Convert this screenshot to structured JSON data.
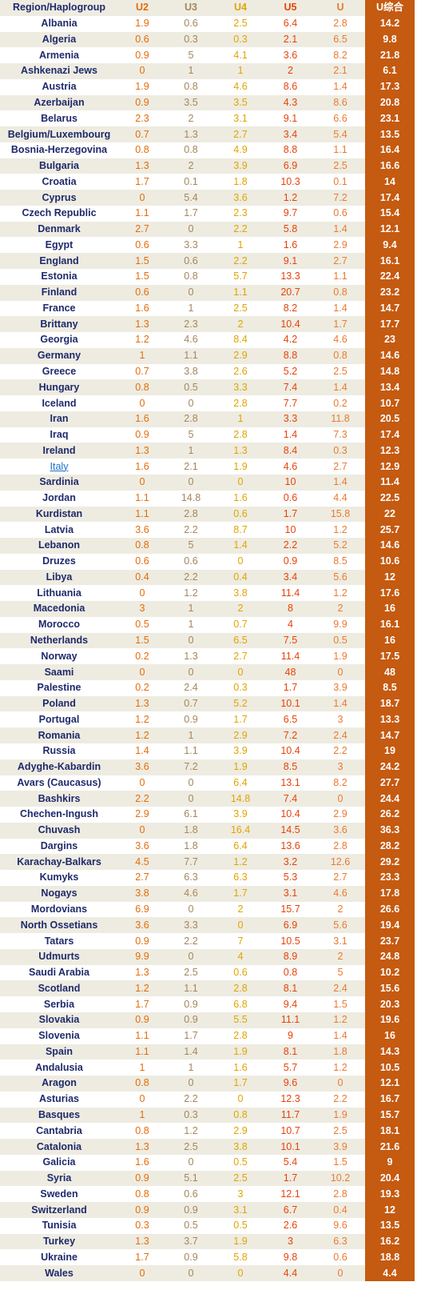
{
  "table": {
    "header": [
      "Region/Haplogroup",
      "U2",
      "U3",
      "U4",
      "U5",
      "U",
      "U综合"
    ],
    "rows": [
      [
        "Albania",
        1.9,
        0.6,
        2.5,
        6.4,
        2.8,
        14.2
      ],
      [
        "Algeria",
        0.6,
        0.3,
        0.3,
        2.1,
        6.5,
        9.8
      ],
      [
        "Armenia",
        0.9,
        5,
        4.1,
        3.6,
        8.2,
        21.8
      ],
      [
        "Ashkenazi Jews",
        0,
        1,
        1,
        2,
        2.1,
        6.1
      ],
      [
        "Austria",
        1.9,
        0.8,
        4.6,
        8.6,
        1.4,
        17.3
      ],
      [
        "Azerbaijan",
        0.9,
        3.5,
        3.5,
        4.3,
        8.6,
        20.8
      ],
      [
        "Belarus",
        2.3,
        2,
        3.1,
        9.1,
        6.6,
        23.1
      ],
      [
        "Belgium/Luxembourg",
        0.7,
        1.3,
        2.7,
        3.4,
        5.4,
        13.5
      ],
      [
        "Bosnia-Herzegovina",
        0.8,
        0.8,
        4.9,
        8.8,
        1.1,
        16.4
      ],
      [
        "Bulgaria",
        1.3,
        2,
        3.9,
        6.9,
        2.5,
        16.6
      ],
      [
        "Croatia",
        1.7,
        0.1,
        1.8,
        10.3,
        0.1,
        14
      ],
      [
        "Cyprus",
        0,
        5.4,
        3.6,
        1.2,
        7.2,
        17.4
      ],
      [
        "Czech Republic",
        1.1,
        1.7,
        2.3,
        9.7,
        0.6,
        15.4
      ],
      [
        "Denmark",
        2.7,
        0,
        2.2,
        5.8,
        1.4,
        12.1
      ],
      [
        "Egypt",
        0.6,
        3.3,
        1,
        1.6,
        2.9,
        9.4
      ],
      [
        "England",
        1.5,
        0.6,
        2.2,
        9.1,
        2.7,
        16.1
      ],
      [
        "Estonia",
        1.5,
        0.8,
        5.7,
        13.3,
        1.1,
        22.4
      ],
      [
        "Finland",
        0.6,
        0,
        1.1,
        20.7,
        0.8,
        23.2
      ],
      [
        "France",
        1.6,
        1,
        2.5,
        8.2,
        1.4,
        14.7
      ],
      [
        "Brittany",
        1.3,
        2.3,
        2,
        10.4,
        1.7,
        17.7
      ],
      [
        "Georgia",
        1.2,
        4.6,
        8.4,
        4.2,
        4.6,
        23
      ],
      [
        "Germany",
        1,
        1.1,
        2.9,
        8.8,
        0.8,
        14.6
      ],
      [
        "Greece",
        0.7,
        3.8,
        2.6,
        5.2,
        2.5,
        14.8
      ],
      [
        "Hungary",
        0.8,
        0.5,
        3.3,
        7.4,
        1.4,
        13.4
      ],
      [
        "Iceland",
        0,
        0,
        2.8,
        7.7,
        0.2,
        10.7
      ],
      [
        "Iran",
        1.6,
        2.8,
        1,
        3.3,
        11.8,
        20.5
      ],
      [
        "Iraq",
        0.9,
        5,
        2.8,
        1.4,
        7.3,
        17.4
      ],
      [
        "Ireland",
        1.3,
        1,
        1.3,
        8.4,
        0.3,
        12.3
      ],
      [
        "Italy",
        1.6,
        2.1,
        1.9,
        4.6,
        2.7,
        12.9
      ],
      [
        "Sardinia",
        0,
        0,
        0,
        10,
        1.4,
        11.4
      ],
      [
        "Jordan",
        1.1,
        14.8,
        1.6,
        0.6,
        4.4,
        22.5
      ],
      [
        "Kurdistan",
        1.1,
        2.8,
        0.6,
        1.7,
        15.8,
        22
      ],
      [
        "Latvia",
        3.6,
        2.2,
        8.7,
        10,
        1.2,
        25.7
      ],
      [
        "Lebanon",
        0.8,
        5,
        1.4,
        2.2,
        5.2,
        14.6
      ],
      [
        "Druzes",
        0.6,
        0.6,
        0,
        0.9,
        8.5,
        10.6
      ],
      [
        "Libya",
        0.4,
        2.2,
        0.4,
        3.4,
        5.6,
        12
      ],
      [
        "Lithuania",
        0,
        1.2,
        3.8,
        11.4,
        1.2,
        17.6
      ],
      [
        "Macedonia",
        3,
        1,
        2,
        8,
        2,
        16
      ],
      [
        "Morocco",
        0.5,
        1,
        0.7,
        4,
        9.9,
        16.1
      ],
      [
        "Netherlands",
        1.5,
        0,
        6.5,
        7.5,
        0.5,
        16
      ],
      [
        "Norway",
        0.2,
        1.3,
        2.7,
        11.4,
        1.9,
        17.5
      ],
      [
        "Saami",
        0,
        0,
        0,
        48,
        0,
        48
      ],
      [
        "Palestine",
        0.2,
        2.4,
        0.3,
        1.7,
        3.9,
        8.5
      ],
      [
        "Poland",
        1.3,
        0.7,
        5.2,
        10.1,
        1.4,
        18.7
      ],
      [
        "Portugal",
        1.2,
        0.9,
        1.7,
        6.5,
        3,
        13.3
      ],
      [
        "Romania",
        1.2,
        1,
        2.9,
        7.2,
        2.4,
        14.7
      ],
      [
        "Russia",
        1.4,
        1.1,
        3.9,
        10.4,
        2.2,
        19
      ],
      [
        "Adyghe-Kabardin",
        3.6,
        7.2,
        1.9,
        8.5,
        3,
        24.2
      ],
      [
        "Avars (Caucasus)",
        0,
        0,
        6.4,
        13.1,
        8.2,
        27.7
      ],
      [
        "Bashkirs",
        2.2,
        0,
        14.8,
        7.4,
        0,
        24.4
      ],
      [
        "Chechen-Ingush",
        2.9,
        6.1,
        3.9,
        10.4,
        2.9,
        26.2
      ],
      [
        "Chuvash",
        0,
        1.8,
        16.4,
        14.5,
        3.6,
        36.3
      ],
      [
        "Dargins",
        3.6,
        1.8,
        6.4,
        13.6,
        2.8,
        28.2
      ],
      [
        "Karachay-Balkars",
        4.5,
        7.7,
        1.2,
        3.2,
        12.6,
        29.2
      ],
      [
        "Kumyks",
        2.7,
        6.3,
        6.3,
        5.3,
        2.7,
        23.3
      ],
      [
        "Nogays",
        3.8,
        4.6,
        1.7,
        3.1,
        4.6,
        17.8
      ],
      [
        "Mordovians",
        6.9,
        0,
        2,
        15.7,
        2,
        26.6
      ],
      [
        "North Ossetians",
        3.6,
        3.3,
        0,
        6.9,
        5.6,
        19.4
      ],
      [
        "Tatars",
        0.9,
        2.2,
        7,
        10.5,
        3.1,
        23.7
      ],
      [
        "Udmurts",
        9.9,
        0,
        4,
        8.9,
        2,
        24.8
      ],
      [
        "Saudi Arabia",
        1.3,
        2.5,
        0.6,
        0.8,
        5,
        10.2
      ],
      [
        "Scotland",
        1.2,
        1.1,
        2.8,
        8.1,
        2.4,
        15.6
      ],
      [
        "Serbia",
        1.7,
        0.9,
        6.8,
        9.4,
        1.5,
        20.3
      ],
      [
        "Slovakia",
        0.9,
        0.9,
        5.5,
        11.1,
        1.2,
        19.6
      ],
      [
        "Slovenia",
        1.1,
        1.7,
        2.8,
        9,
        1.4,
        16
      ],
      [
        "Spain",
        1.1,
        1.4,
        1.9,
        8.1,
        1.8,
        14.3
      ],
      [
        "Andalusia",
        1,
        1,
        1.6,
        5.7,
        1.2,
        10.5
      ],
      [
        "Aragon",
        0.8,
        0,
        1.7,
        9.6,
        0,
        12.1
      ],
      [
        "Asturias",
        0,
        2.2,
        0,
        12.3,
        2.2,
        16.7
      ],
      [
        "Basques",
        1,
        0.3,
        0.8,
        11.7,
        1.9,
        15.7
      ],
      [
        "Cantabria",
        0.8,
        1.2,
        2.9,
        10.7,
        2.5,
        18.1
      ],
      [
        "Catalonia",
        1.3,
        2.5,
        3.8,
        10.1,
        3.9,
        21.6
      ],
      [
        "Galicia",
        1.6,
        0,
        0.5,
        5.4,
        1.5,
        9
      ],
      [
        "Syria",
        0.9,
        5.1,
        2.5,
        1.7,
        10.2,
        20.4
      ],
      [
        "Sweden",
        0.8,
        0.6,
        3,
        12.1,
        2.8,
        19.3
      ],
      [
        "Switzerland",
        0.9,
        0.9,
        3.1,
        6.7,
        0.4,
        12
      ],
      [
        "Tunisia",
        0.3,
        0.5,
        0.5,
        2.6,
        9.6,
        13.5
      ],
      [
        "Turkey",
        1.3,
        3.7,
        1.9,
        3,
        6.3,
        16.2
      ],
      [
        "Ukraine",
        1.7,
        0.9,
        5.8,
        9.8,
        0.6,
        18.8
      ],
      [
        "Wales",
        0,
        0,
        0,
        4.4,
        0,
        4.4
      ]
    ]
  }
}
